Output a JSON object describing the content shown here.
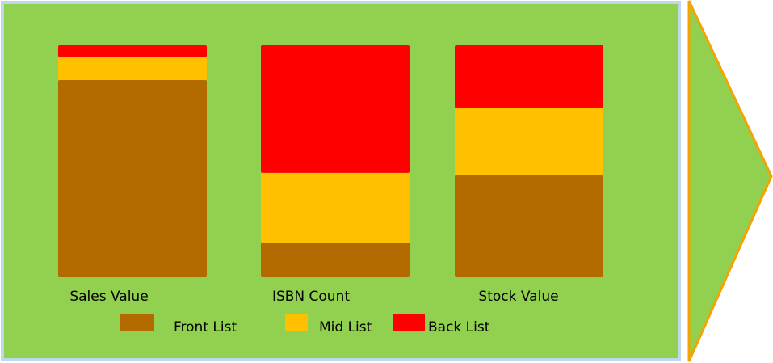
{
  "chart_data": {
    "type": "stacked_bar",
    "categories": [
      "Sales Value",
      "ISBN Count",
      "Stock Value"
    ],
    "series": [
      {
        "name": "Front List",
        "color": "#b36b00",
        "values": [
          85,
          15,
          44
        ]
      },
      {
        "name": "Mid List",
        "color": "#ffc000",
        "values": [
          10,
          30,
          29
        ]
      },
      {
        "name": "Back List",
        "color": "#ff0000",
        "values": [
          5,
          55,
          27
        ]
      }
    ],
    "ylim": [
      0,
      100
    ],
    "background": "#92d050"
  }
}
